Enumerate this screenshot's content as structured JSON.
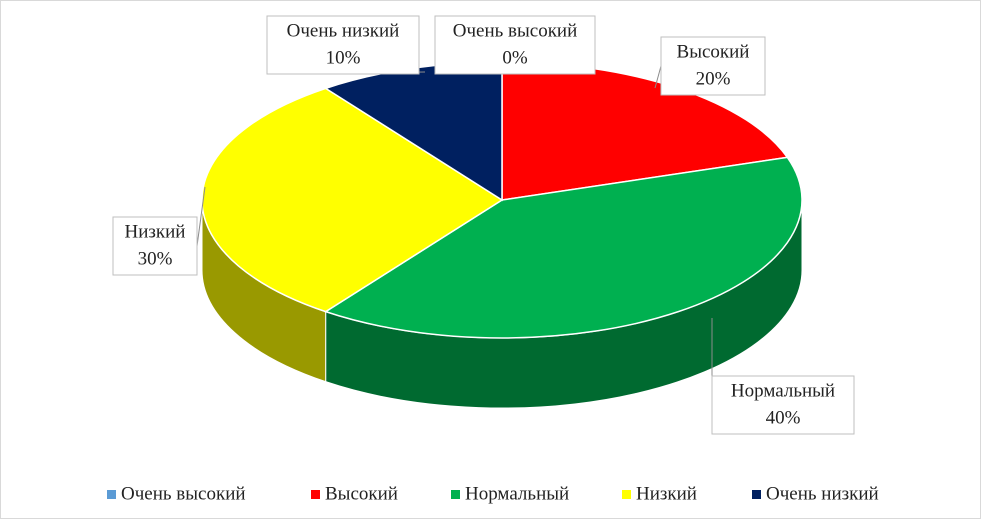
{
  "chart_data": {
    "type": "pie",
    "categories": [
      "Очень высокий",
      "Высокий",
      "Нормальный",
      "Низкий",
      "Очень низкий"
    ],
    "values": [
      0,
      20,
      40,
      30,
      10
    ],
    "value_labels": [
      "0%",
      "20%",
      "40%",
      "30%",
      "10%"
    ],
    "colors": [
      "#5b9bd5",
      "#ff0000",
      "#00b050",
      "#ffff00",
      "#002060"
    ],
    "legend": "bottom"
  }
}
